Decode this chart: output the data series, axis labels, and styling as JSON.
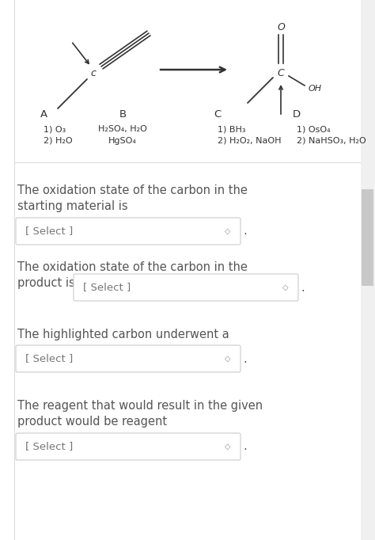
{
  "bg_color": "#ffffff",
  "border_color": "#cccccc",
  "text_color": "#555555",
  "chem_text_color": "#333333",
  "q1_line1": "The oxidation state of the carbon in the",
  "q1_line2": "starting material is",
  "q2_line1": "The oxidation state of the carbon in the",
  "q2_line2": "product is",
  "q3_line1": "The highlighted carbon underwent a",
  "q4_line1": "The reagent that would result in the given",
  "q4_line2": "product would be reagent",
  "select_text": "[ Select ]",
  "dot_text": ".",
  "reagent_labels": [
    "A",
    "B",
    "C",
    "D"
  ],
  "reagent_A": [
    "1) O₃",
    "2) H₂O"
  ],
  "reagent_B": [
    "H₂SO₄, H₂O",
    "HgSO₄"
  ],
  "reagent_C": [
    "1) BH₃",
    "2) H₂O₂, NaOH"
  ],
  "reagent_D": [
    "1) OsO₄",
    "2) NaHSO₃, H₂O"
  ],
  "font_size_main": 10.5,
  "font_size_select": 9.5,
  "font_size_reagent": 8,
  "font_size_label": 9.5,
  "font_size_chem": 8
}
